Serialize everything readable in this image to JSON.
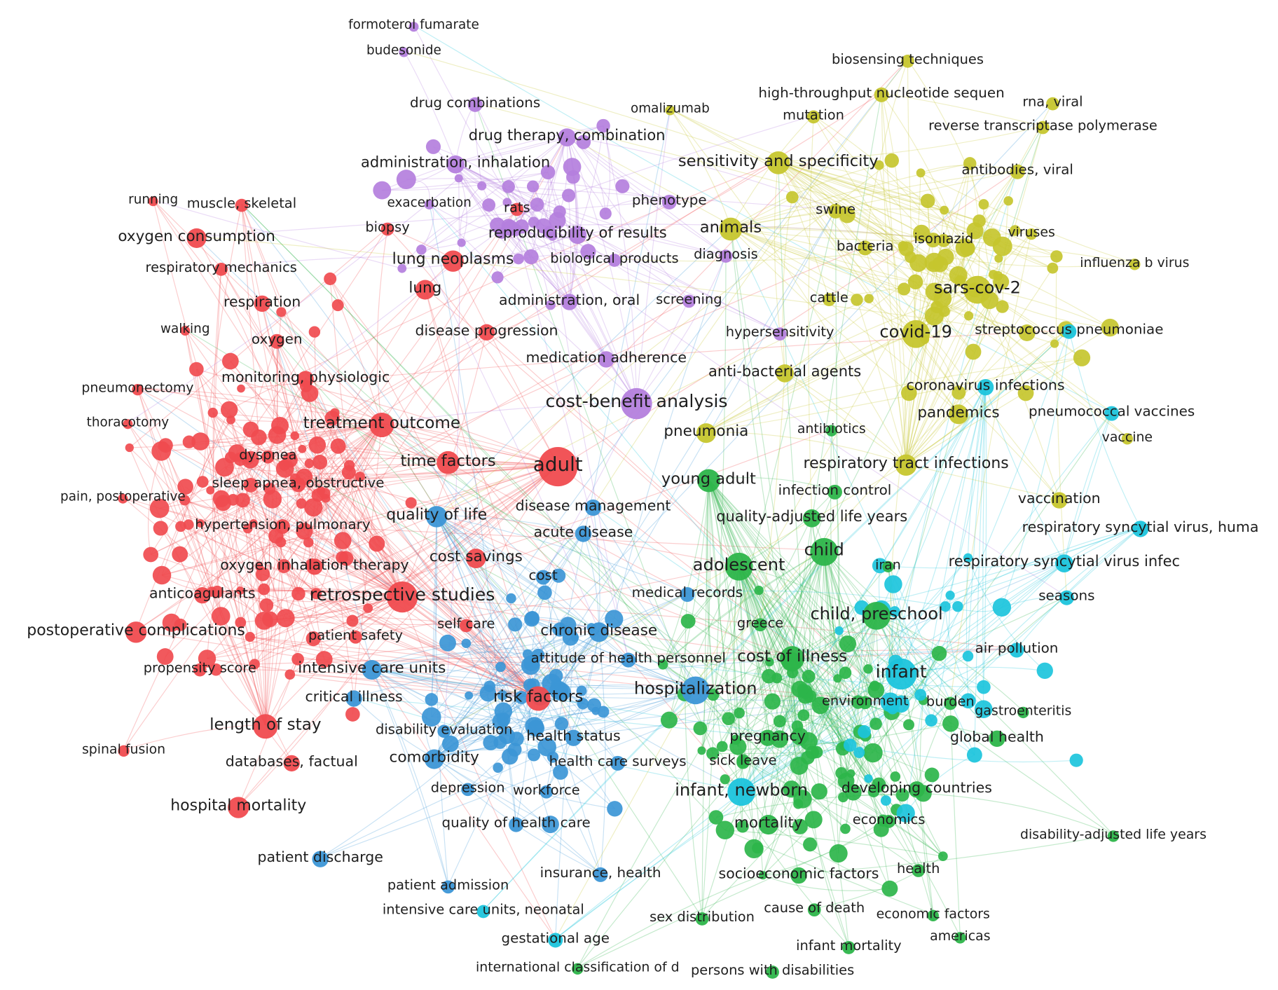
{
  "clusters": [
    {
      "color": "#f04b4f",
      "nodes": [
        "running",
        "muscle, skeletal",
        "oxygen consumption",
        "respiratory mechanics",
        "respiration",
        "walking",
        "oxygen",
        "pneumonectomy",
        "monitoring, physiologic",
        "thoracotomy",
        "treatment outcome",
        "dyspnea",
        "time factors",
        "adult",
        "sleep apnea, obstructive",
        "pain, postoperative",
        "hypertension, pulmonary",
        "oxygen inhalation therapy",
        "cost savings",
        "anticoagulants",
        "retrospective studies",
        "postoperative complications",
        "patient safety",
        "self care",
        "propensity score",
        "risk factors",
        "length of stay",
        "spinal fusion",
        "databases, factual",
        "hospital mortality",
        "lung",
        "lung neoplasms",
        "disease progression",
        "biopsy",
        "rats"
      ]
    },
    {
      "color": "#b47fdd",
      "nodes": [
        "formoterol fumarate",
        "budesonide",
        "drug combinations",
        "drug therapy, combination",
        "administration, inhalation",
        "exacerbation",
        "reproducibility of results",
        "phenotype",
        "biological products",
        "diagnosis",
        "administration, oral",
        "screening",
        "hypersensitivity",
        "medication adherence",
        "cost-benefit analysis"
      ]
    },
    {
      "color": "#3c96d6",
      "nodes": [
        "quality of life",
        "disease management",
        "acute disease",
        "cost",
        "medical records",
        "chronic disease",
        "attitude of health personnel",
        "intensive care units",
        "critical illness",
        "hospitalization",
        "disability evaluation",
        "health status",
        "comorbidity",
        "health care surveys",
        "depression",
        "workforce",
        "quality of health care",
        "patient discharge",
        "insurance, health",
        "patient admission"
      ]
    },
    {
      "color": "#2db54a",
      "nodes": [
        "antibiotics",
        "young adult",
        "infection control",
        "quality-adjusted life years",
        "child",
        "adolescent",
        "iran",
        "greece",
        "child, preschool",
        "cost of illness",
        "environment",
        "burden",
        "gastroenteritis",
        "pregnancy",
        "global health",
        "sick leave",
        "developing countries",
        "mortality",
        "economics",
        "disability-adjusted life years",
        "health",
        "socioeconomic factors",
        "cause of death",
        "sex distribution",
        "economic factors",
        "americas",
        "infant mortality",
        "international classification of d",
        "persons with disabilities"
      ]
    },
    {
      "color": "#1cc4dc",
      "nodes": [
        "streptococcus pneumoniae",
        "coronavirus infections",
        "pneumococcal vaccines",
        "respiratory syncytial virus, huma",
        "respiratory syncytial virus infec",
        "seasons",
        "infant",
        "infant, newborn",
        "intensive care units, neonatal",
        "gestational age",
        "air pollution"
      ]
    },
    {
      "color": "#c6c62e",
      "nodes": [
        "biosensing techniques",
        "high-throughput nucleotide sequen",
        "mutation",
        "omalizumab",
        "rna, viral",
        "reverse transcriptase polymerase",
        "sensitivity and specificity",
        "antibodies, viral",
        "animals",
        "swine",
        "bacteria",
        "isoniazid",
        "viruses",
        "influenza b virus",
        "sars-cov-2",
        "cattle",
        "covid-19",
        "anti-bacterial agents",
        "pandemics",
        "pneumonia",
        "vaccine",
        "respiratory tract infections",
        "vaccination"
      ]
    }
  ]
}
